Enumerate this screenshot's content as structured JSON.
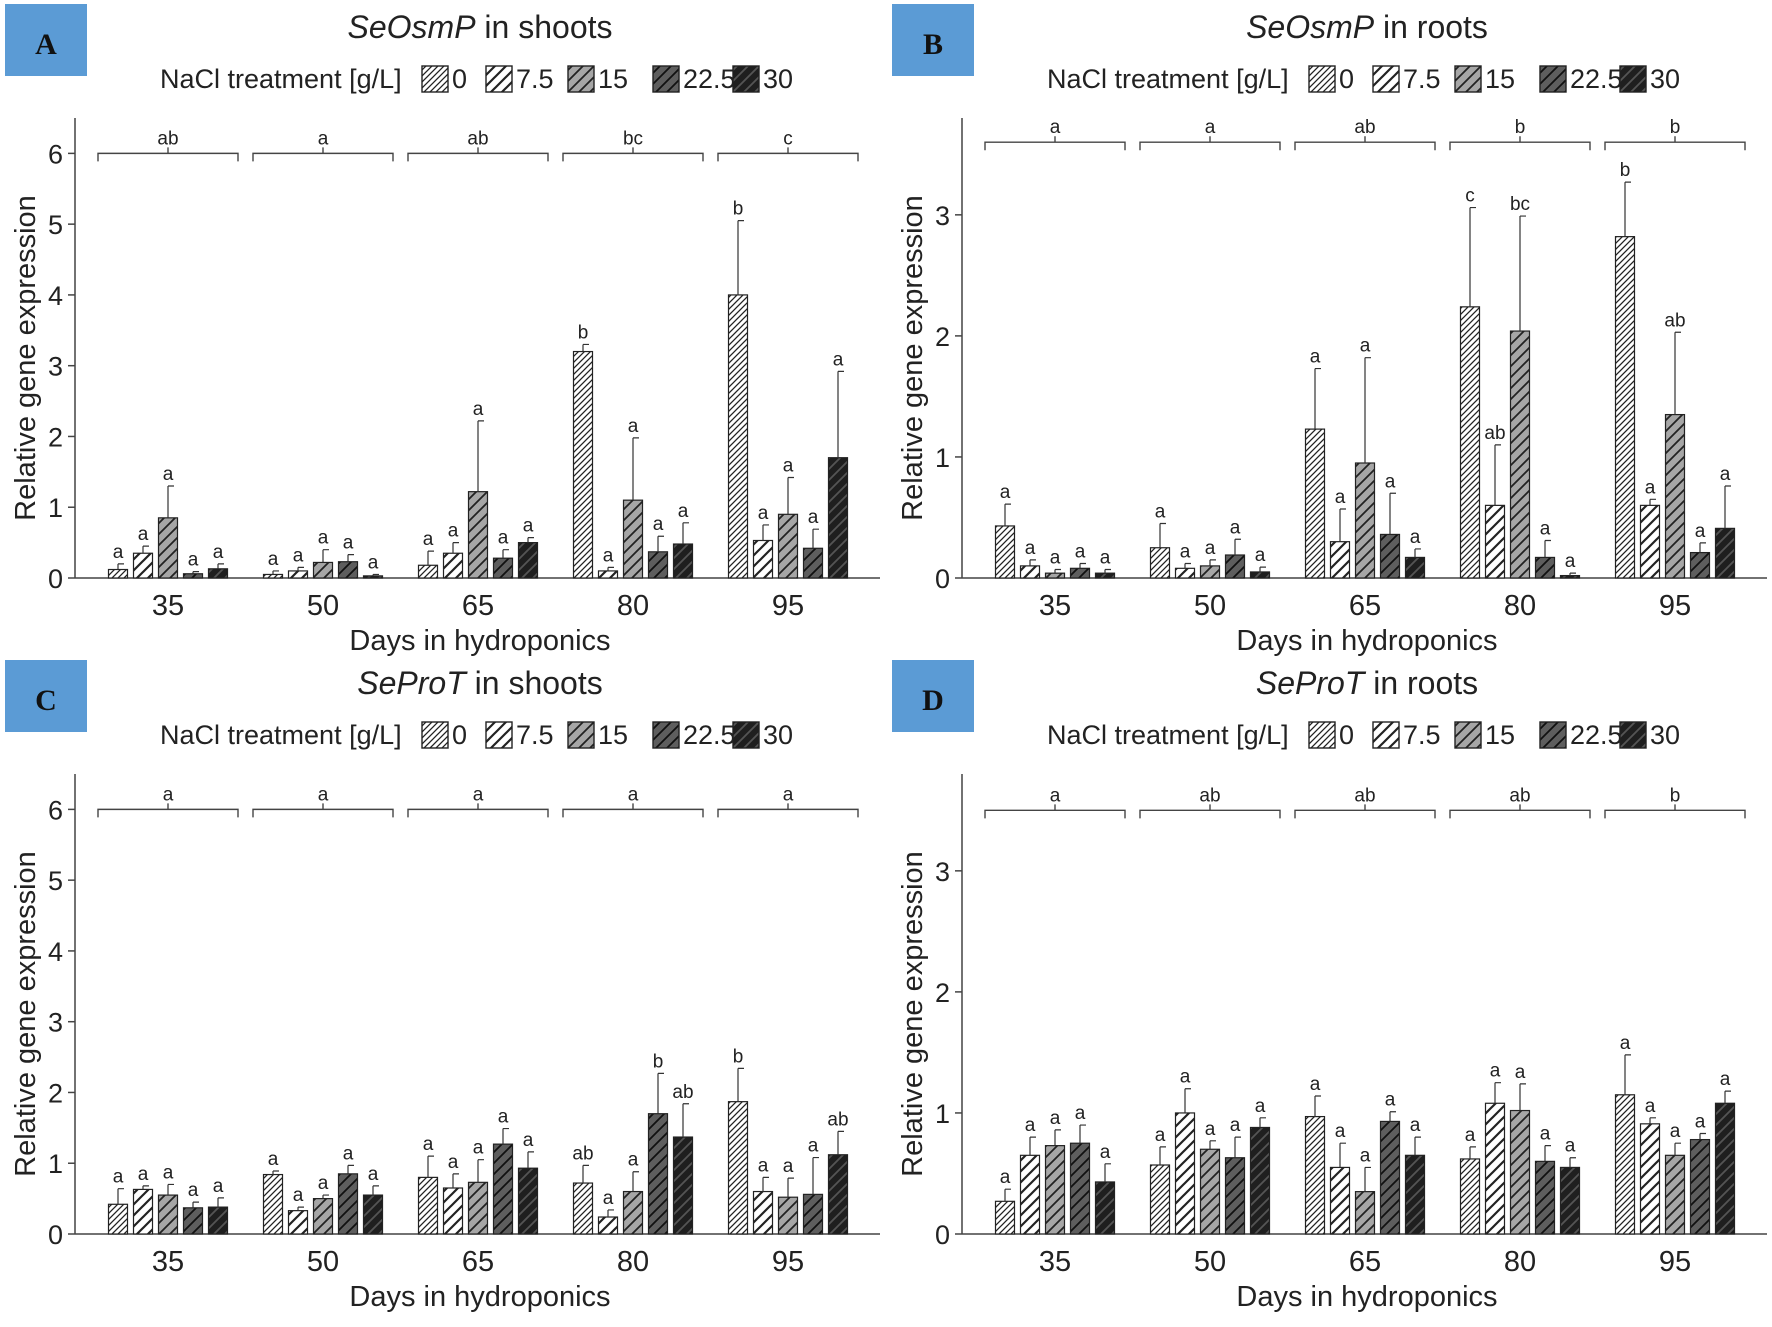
{
  "figure": {
    "legend_title": "NaCl treatment [g/L]",
    "treatments": [
      "0",
      "7.5",
      "15",
      "22.5",
      "30"
    ],
    "treatment_fills": [
      "#ffffff",
      "#ffffff",
      "#a6a6a6",
      "#5e5e5e",
      "#1f1f1f"
    ],
    "hatch_strokes": [
      "#222222",
      "#222222",
      "#222222",
      "#111111",
      "#555555"
    ],
    "label_box_color": "#5b9bd5"
  },
  "chart_data": [
    {
      "panel": "A",
      "type": "bar",
      "title_italic": "SeOsmP",
      "title_rest": " in shoots",
      "xlabel": "Days in hydroponics",
      "ylabel": "Relative gene expression",
      "categories": [
        "35",
        "50",
        "65",
        "80",
        "95"
      ],
      "yticks": [
        "0",
        "1",
        "2",
        "3",
        "4",
        "5",
        "6"
      ],
      "ylim": [
        0,
        6.5
      ],
      "bracket_y": 6.0,
      "group_letters": [
        "ab",
        "a",
        "ab",
        "bc",
        "c"
      ],
      "series": [
        {
          "name": "0",
          "values": [
            0.12,
            0.05,
            0.18,
            3.2,
            4.0
          ],
          "errors": [
            0.08,
            0.05,
            0.2,
            0.1,
            1.05
          ],
          "letters": [
            "a",
            "a",
            "a",
            "b",
            "b"
          ]
        },
        {
          "name": "7.5",
          "values": [
            0.35,
            0.1,
            0.35,
            0.1,
            0.53
          ],
          "errors": [
            0.1,
            0.05,
            0.15,
            0.05,
            0.22
          ],
          "letters": [
            "a",
            "a",
            "a",
            "a",
            "a"
          ]
        },
        {
          "name": "15",
          "values": [
            0.85,
            0.22,
            1.22,
            1.1,
            0.9
          ],
          "errors": [
            0.45,
            0.18,
            1.0,
            0.88,
            0.52
          ],
          "letters": [
            "a",
            "a",
            "a",
            "a",
            "a"
          ]
        },
        {
          "name": "22.5",
          "values": [
            0.06,
            0.23,
            0.28,
            0.37,
            0.42
          ],
          "errors": [
            0.03,
            0.1,
            0.12,
            0.22,
            0.27
          ],
          "letters": [
            "a",
            "a",
            "a",
            "a",
            "a"
          ]
        },
        {
          "name": "30",
          "values": [
            0.13,
            0.03,
            0.5,
            0.48,
            1.7
          ],
          "errors": [
            0.07,
            0.02,
            0.07,
            0.3,
            1.22
          ],
          "letters": [
            "a",
            "a",
            "a",
            "a",
            "a"
          ]
        }
      ]
    },
    {
      "panel": "B",
      "type": "bar",
      "title_italic": "SeOsmP",
      "title_rest": " in roots",
      "xlabel": "Days in hydroponics",
      "ylabel": "Relative gene expression",
      "categories": [
        "35",
        "50",
        "65",
        "80",
        "95"
      ],
      "yticks": [
        "0",
        "1",
        "2",
        "3"
      ],
      "ylim": [
        0,
        3.8
      ],
      "bracket_y": 3.6,
      "group_letters": [
        "a",
        "a",
        "ab",
        "b",
        "b"
      ],
      "series": [
        {
          "name": "0",
          "values": [
            0.43,
            0.25,
            1.23,
            2.24,
            2.82
          ],
          "errors": [
            0.18,
            0.2,
            0.5,
            0.82,
            0.45
          ],
          "letters": [
            "a",
            "a",
            "a",
            "c",
            "b"
          ]
        },
        {
          "name": "7.5",
          "values": [
            0.1,
            0.08,
            0.3,
            0.6,
            0.6
          ],
          "errors": [
            0.05,
            0.04,
            0.27,
            0.5,
            0.05
          ],
          "letters": [
            "a",
            "a",
            "a",
            "ab",
            "a"
          ]
        },
        {
          "name": "15",
          "values": [
            0.04,
            0.1,
            0.95,
            2.04,
            1.35
          ],
          "errors": [
            0.03,
            0.05,
            0.87,
            0.95,
            0.68
          ],
          "letters": [
            "a",
            "a",
            "a",
            "bc",
            "ab"
          ]
        },
        {
          "name": "22.5",
          "values": [
            0.08,
            0.19,
            0.36,
            0.17,
            0.21
          ],
          "errors": [
            0.04,
            0.13,
            0.34,
            0.14,
            0.08
          ],
          "letters": [
            "a",
            "a",
            "a",
            "a",
            "a"
          ]
        },
        {
          "name": "30",
          "values": [
            0.04,
            0.05,
            0.17,
            0.02,
            0.41
          ],
          "errors": [
            0.03,
            0.04,
            0.07,
            0.02,
            0.35
          ],
          "letters": [
            "a",
            "a",
            "a",
            "a",
            "a"
          ]
        }
      ]
    },
    {
      "panel": "C",
      "type": "bar",
      "title_italic": "SeProT",
      "title_rest": " in shoots",
      "xlabel": "Days in hydroponics",
      "ylabel": "Relative gene expression",
      "categories": [
        "35",
        "50",
        "65",
        "80",
        "95"
      ],
      "yticks": [
        "0",
        "1",
        "2",
        "3",
        "4",
        "5",
        "6"
      ],
      "ylim": [
        0,
        6.5
      ],
      "bracket_y": 6.0,
      "group_letters": [
        "a",
        "a",
        "a",
        "a",
        "a"
      ],
      "series": [
        {
          "name": "0",
          "values": [
            0.42,
            0.84,
            0.8,
            0.72,
            1.87
          ],
          "errors": [
            0.22,
            0.05,
            0.3,
            0.25,
            0.47
          ],
          "letters": [
            "a",
            "a",
            "a",
            "ab",
            "b"
          ]
        },
        {
          "name": "7.5",
          "values": [
            0.63,
            0.33,
            0.65,
            0.24,
            0.6
          ],
          "errors": [
            0.05,
            0.05,
            0.2,
            0.1,
            0.2
          ],
          "letters": [
            "a",
            "a",
            "a",
            "a",
            "a"
          ]
        },
        {
          "name": "15",
          "values": [
            0.55,
            0.5,
            0.73,
            0.6,
            0.52
          ],
          "errors": [
            0.15,
            0.05,
            0.32,
            0.28,
            0.27
          ],
          "letters": [
            "a",
            "a",
            "a",
            "a",
            "a"
          ]
        },
        {
          "name": "22.5",
          "values": [
            0.37,
            0.85,
            1.27,
            1.7,
            0.56
          ],
          "errors": [
            0.08,
            0.12,
            0.22,
            0.57,
            0.52
          ],
          "letters": [
            "a",
            "a",
            "a",
            "b",
            "a"
          ]
        },
        {
          "name": "30",
          "values": [
            0.38,
            0.55,
            0.93,
            1.37,
            1.12
          ],
          "errors": [
            0.13,
            0.13,
            0.23,
            0.47,
            0.33
          ],
          "letters": [
            "a",
            "a",
            "a",
            "ab",
            "ab"
          ]
        }
      ]
    },
    {
      "panel": "D",
      "type": "bar",
      "title_italic": "SeProT",
      "title_rest": " in roots",
      "xlabel": "Days in hydroponics",
      "ylabel": "Relative gene expression",
      "categories": [
        "35",
        "50",
        "65",
        "80",
        "95"
      ],
      "yticks": [
        "0",
        "1",
        "2",
        "3"
      ],
      "ylim": [
        0,
        3.8
      ],
      "bracket_y": 3.5,
      "group_letters": [
        "a",
        "ab",
        "ab",
        "ab",
        "b"
      ],
      "series": [
        {
          "name": "0",
          "values": [
            0.27,
            0.57,
            0.97,
            0.62,
            1.15
          ],
          "errors": [
            0.1,
            0.15,
            0.17,
            0.1,
            0.33
          ],
          "letters": [
            "a",
            "a",
            "a",
            "a",
            "a"
          ]
        },
        {
          "name": "7.5",
          "values": [
            0.65,
            1.0,
            0.55,
            1.08,
            0.91
          ],
          "errors": [
            0.15,
            0.2,
            0.2,
            0.17,
            0.05
          ],
          "letters": [
            "a",
            "a",
            "a",
            "a",
            "a"
          ]
        },
        {
          "name": "15",
          "values": [
            0.73,
            0.7,
            0.35,
            1.02,
            0.65
          ],
          "errors": [
            0.13,
            0.07,
            0.2,
            0.22,
            0.1
          ],
          "letters": [
            "a",
            "a",
            "a",
            "a",
            "a"
          ]
        },
        {
          "name": "22.5",
          "values": [
            0.75,
            0.63,
            0.93,
            0.6,
            0.78
          ],
          "errors": [
            0.15,
            0.17,
            0.08,
            0.13,
            0.05
          ],
          "letters": [
            "a",
            "a",
            "a",
            "a",
            "a"
          ]
        },
        {
          "name": "30",
          "values": [
            0.43,
            0.88,
            0.65,
            0.55,
            1.08
          ],
          "errors": [
            0.15,
            0.08,
            0.15,
            0.08,
            0.1
          ],
          "letters": [
            "a",
            "a",
            "a",
            "a",
            "a"
          ]
        }
      ]
    }
  ]
}
